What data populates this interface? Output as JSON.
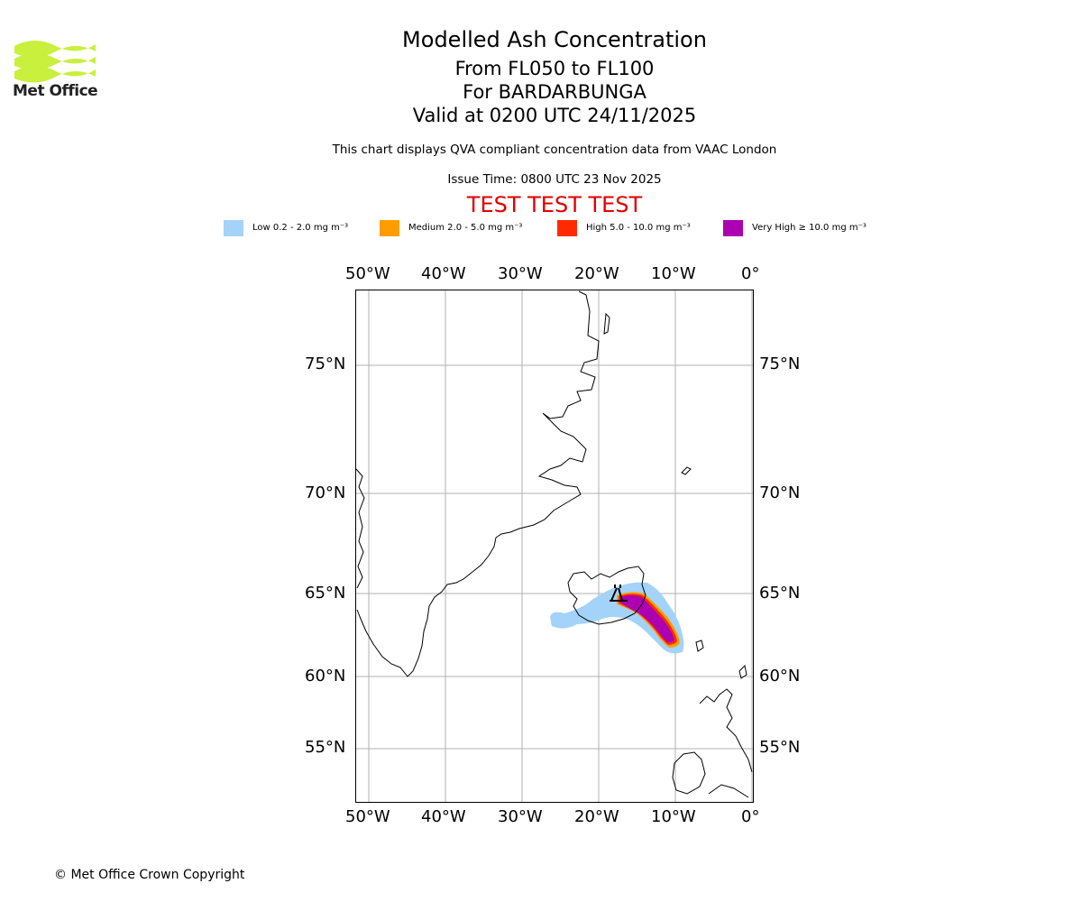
{
  "logo": {
    "text": "Met Office"
  },
  "title": {
    "main": "Modelled Ash Concentration",
    "levels": "From FL050 to FL100",
    "volcano": "For BARDARBUNGA",
    "valid": "Valid at 0200 UTC 24/11/2025"
  },
  "description": "This chart displays QVA compliant concentration data from VAAC London",
  "issue_time": "Issue Time: 0800 UTC 23 Nov 2025",
  "test_banner": "TEST TEST TEST",
  "legend": [
    {
      "label": "Low 0.2 - 2.0 mg m⁻³",
      "color": "#a3d3f8"
    },
    {
      "label": "Medium 2.0 - 5.0 mg m⁻³",
      "color": "#ff9d00"
    },
    {
      "label": "High 5.0 - 10.0 mg m⁻³",
      "color": "#ff2a00"
    },
    {
      "label": "Very High ≥ 10.0 mg m⁻³",
      "color": "#ad00b0"
    }
  ],
  "map": {
    "lon_labels": [
      "50°W",
      "40°W",
      "30°W",
      "20°W",
      "10°W",
      "0°"
    ],
    "lat_labels": [
      "75°N",
      "70°N",
      "65°N",
      "60°N",
      "55°N"
    ],
    "grid_color": "#b0b0b0",
    "coast_color": "#000000"
  },
  "copyright": "© Met Office Crown Copyright"
}
